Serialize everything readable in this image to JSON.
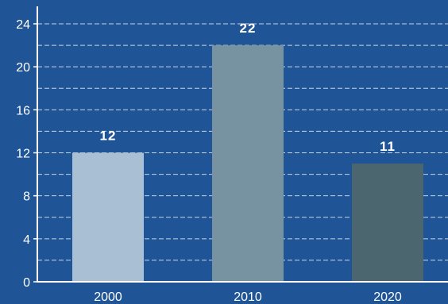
{
  "chart_data": {
    "type": "bar",
    "categories": [
      "2000",
      "2010",
      "2020"
    ],
    "values": [
      12,
      22,
      11
    ],
    "data_labels": [
      "12",
      "22",
      "11"
    ],
    "bar_colors": [
      "#a9bfd3",
      "#7792a0",
      "#4c6670"
    ],
    "ylim": [
      0,
      24
    ],
    "y_ticks": [
      "0",
      "4",
      "8",
      "12",
      "16",
      "20",
      "24"
    ],
    "grid": "dashed horizontal",
    "background": "#1f5597",
    "axis_color": "#ffffff"
  }
}
